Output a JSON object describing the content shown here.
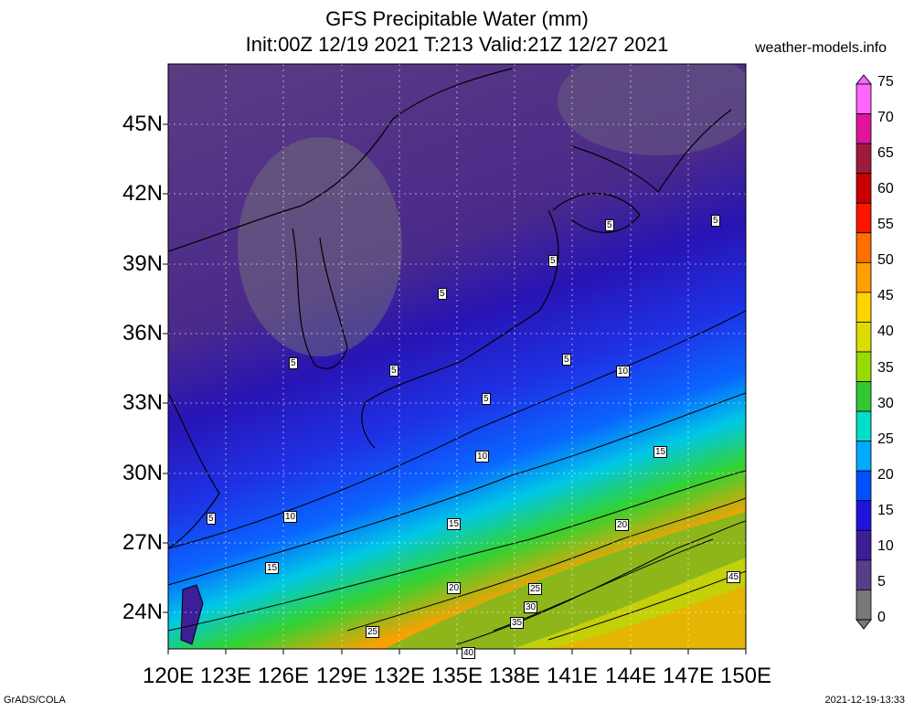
{
  "title_line1": "GFS Precipitable Water (mm)",
  "title_line2": "Init:00Z 12/19 2021 T:213 Valid:21Z 12/27 2021",
  "site": "weather-models.info",
  "footer_left": "GrADS/COLA",
  "footer_right": "2021-12-19-13:33",
  "y_ticks": [
    "45N",
    "42N",
    "39N",
    "36N",
    "33N",
    "30N",
    "27N",
    "24N"
  ],
  "x_ticks": [
    "120E",
    "123E",
    "126E",
    "129E",
    "132E",
    "135E",
    "138E",
    "141E",
    "144E",
    "147E",
    "150E"
  ],
  "colorbar": {
    "labels": [
      "75",
      "70",
      "65",
      "60",
      "55",
      "50",
      "45",
      "40",
      "35",
      "30",
      "25",
      "20",
      "15",
      "10",
      "5",
      "0"
    ],
    "colors": [
      "#ff66ff",
      "#e0149b",
      "#a01a3c",
      "#c80000",
      "#ff1400",
      "#ff6e00",
      "#ffa000",
      "#ffd200",
      "#dcdc00",
      "#96dc00",
      "#32c832",
      "#00e0c8",
      "#00aaff",
      "#0050ff",
      "#1e14dc",
      "#3c1e96",
      "#5a3c8c",
      "#787878"
    ]
  },
  "contour_labels": [
    "5",
    "5",
    "5",
    "5",
    "5",
    "5",
    "5",
    "5",
    "5",
    "10",
    "10",
    "10",
    "15",
    "15",
    "15",
    "20",
    "20",
    "25",
    "25",
    "30",
    "35",
    "40",
    "45"
  ]
}
